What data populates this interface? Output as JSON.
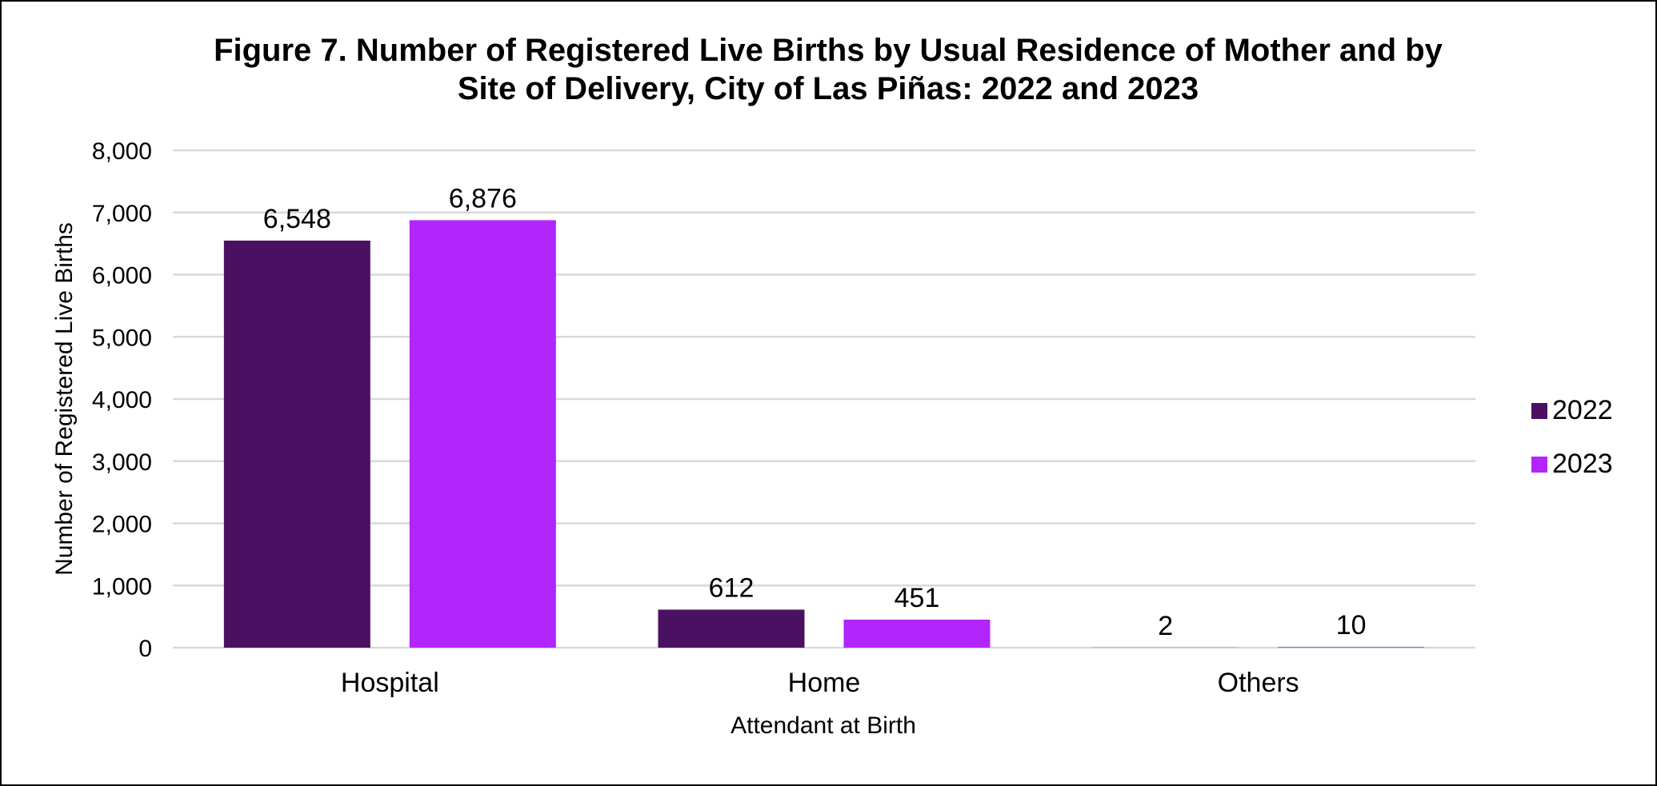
{
  "chart_data": {
    "type": "bar",
    "title_lines": [
      "Figure 7. Number of Registered Live Births by Usual Residence of Mother and by",
      "Site of Delivery, City of Las Piñas: 2022 and 2023"
    ],
    "xlabel": "Attendant at Birth",
    "ylabel": "Number of Registered Live Births",
    "categories": [
      "Hospital",
      "Home",
      "Others"
    ],
    "series": [
      {
        "name": "2022",
        "color": "#4a1162",
        "values": [
          6548,
          612,
          2
        ],
        "labels": [
          "6,548",
          "612",
          "2"
        ]
      },
      {
        "name": "2023",
        "color": "#b226fd",
        "values": [
          6876,
          451,
          10
        ],
        "labels": [
          "6,876",
          "451",
          "10"
        ]
      }
    ],
    "ylim": [
      0,
      8000
    ],
    "yticks": [
      0,
      1000,
      2000,
      3000,
      4000,
      5000,
      6000,
      7000,
      8000
    ],
    "ytick_labels": [
      "0",
      "1,000",
      "2,000",
      "3,000",
      "4,000",
      "5,000",
      "6,000",
      "7,000",
      "8,000"
    ],
    "grid": true,
    "legend_position": "right"
  }
}
